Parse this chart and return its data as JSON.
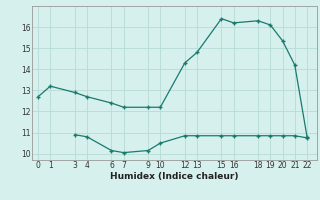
{
  "upper_x": [
    0,
    1,
    3,
    4,
    6,
    7,
    9,
    10,
    12,
    13,
    15,
    16,
    18,
    19,
    20,
    21,
    22
  ],
  "upper_y": [
    12.7,
    13.2,
    12.9,
    12.7,
    12.4,
    12.2,
    12.2,
    12.2,
    14.3,
    14.8,
    16.4,
    16.2,
    16.3,
    16.1,
    15.35,
    14.2,
    10.8
  ],
  "lower_x": [
    3,
    4,
    6,
    7,
    9,
    10,
    12,
    13,
    15,
    16,
    18,
    19,
    20,
    21,
    22
  ],
  "lower_y": [
    10.9,
    10.8,
    10.15,
    10.05,
    10.15,
    10.5,
    10.85,
    10.85,
    10.85,
    10.85,
    10.85,
    10.85,
    10.85,
    10.85,
    10.75
  ],
  "line_color": "#1a7a6e",
  "bg_color": "#d6f0ee",
  "grid_color": "#b8dbd8",
  "xlabel": "Humidex (Indice chaleur)",
  "yticks": [
    10,
    11,
    12,
    13,
    14,
    15,
    16
  ],
  "xticks": [
    0,
    1,
    3,
    4,
    6,
    7,
    9,
    10,
    12,
    13,
    15,
    16,
    18,
    19,
    20,
    21,
    22
  ],
  "ylim": [
    9.7,
    17.0
  ],
  "xlim": [
    -0.5,
    22.8
  ],
  "tick_fontsize": 5.5,
  "xlabel_fontsize": 6.5
}
